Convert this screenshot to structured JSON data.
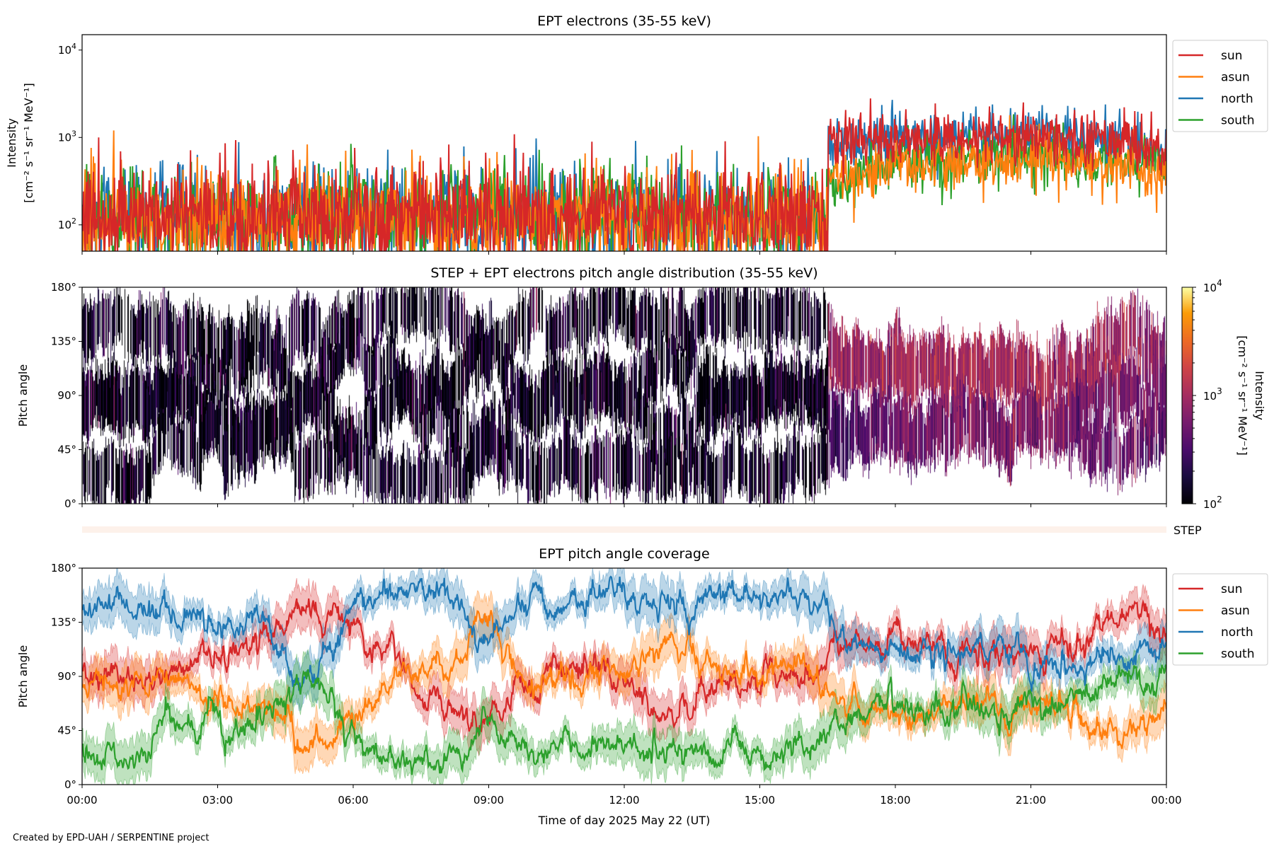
{
  "footer": "Created by EPD-UAH / SERPENTINE project",
  "xaxis": {
    "label": "Time of day 2025 May 22 (UT)",
    "ticks": [
      "00:00",
      "03:00",
      "06:00",
      "09:00",
      "12:00",
      "15:00",
      "18:00",
      "21:00",
      "00:00"
    ],
    "range_hours": [
      0,
      24
    ]
  },
  "step_label": "STEP",
  "chart_data": [
    {
      "type": "line",
      "title": "EPT electrons (35-55 keV)",
      "ylabel": [
        "Intensity",
        "[cm⁻² s⁻¹ sr⁻¹ MeV⁻¹]"
      ],
      "yscale": "log",
      "ylim": [
        50,
        15000
      ],
      "yticks": [
        {
          "value": 100,
          "base": "10",
          "exp": "2"
        },
        {
          "value": 1000,
          "base": "10",
          "exp": "3"
        },
        {
          "value": 10000,
          "base": "10",
          "exp": "4"
        }
      ],
      "legend": "right-outside-top",
      "x_hours": [
        0,
        1,
        2,
        3,
        4,
        5,
        6,
        7,
        8,
        9,
        10,
        11,
        12,
        13,
        14,
        15,
        16,
        17,
        18,
        19,
        20,
        21,
        22,
        23,
        24
      ],
      "series": [
        {
          "name": "sun",
          "color": "#d62728",
          "values": [
            130,
            130,
            130,
            130,
            130,
            130,
            130,
            130,
            130,
            130,
            130,
            130,
            130,
            130,
            130,
            130,
            130,
            900,
            1000,
            950,
            1000,
            950,
            950,
            900,
            700
          ]
        },
        {
          "name": "asun",
          "color": "#ff7f0e",
          "values": [
            110,
            110,
            110,
            110,
            110,
            110,
            110,
            110,
            110,
            110,
            110,
            110,
            110,
            110,
            110,
            110,
            110,
            350,
            450,
            500,
            550,
            600,
            500,
            450,
            400
          ]
        },
        {
          "name": "north",
          "color": "#1f77b4",
          "values": [
            120,
            120,
            120,
            120,
            120,
            120,
            120,
            120,
            120,
            120,
            120,
            120,
            120,
            120,
            120,
            120,
            120,
            850,
            950,
            1000,
            1000,
            1100,
            950,
            900,
            700
          ]
        },
        {
          "name": "south",
          "color": "#2ca02c",
          "values": [
            130,
            130,
            130,
            130,
            130,
            130,
            130,
            130,
            130,
            130,
            130,
            130,
            130,
            130,
            130,
            130,
            130,
            300,
            550,
            550,
            600,
            650,
            600,
            550,
            500
          ]
        }
      ]
    },
    {
      "type": "heatmap",
      "title": "STEP + EPT electrons pitch angle distribution (35-55 keV)",
      "ylabel": "Pitch angle",
      "ylim": [
        0,
        180
      ],
      "yticks": [
        "0°",
        "45°",
        "90°",
        "135°",
        "180°"
      ],
      "colormap": "inferno",
      "colorbar": {
        "label": [
          "Intensity",
          "[cm⁻² s⁻¹ sr⁻¹ MeV⁻¹]"
        ],
        "range": [
          100,
          10000
        ],
        "scale": "log",
        "ticks": [
          {
            "value": 100,
            "base": "10",
            "exp": "2"
          },
          {
            "value": 1000,
            "base": "10",
            "exp": "3"
          },
          {
            "value": 10000,
            "base": "10",
            "exp": "4"
          }
        ]
      }
    },
    {
      "type": "line",
      "title": "EPT pitch angle coverage",
      "ylabel": "Pitch angle",
      "ylim": [
        0,
        180
      ],
      "yticks": [
        "0°",
        "45°",
        "90°",
        "135°",
        "180°"
      ],
      "legend": "right-outside-top",
      "x_hours": [
        0,
        1,
        2,
        3,
        4,
        5,
        6,
        7,
        8,
        9,
        10,
        11,
        12,
        13,
        14,
        15,
        16,
        17,
        18,
        19,
        20,
        21,
        22,
        23,
        24
      ],
      "series": [
        {
          "name": "sun",
          "color": "#d62728",
          "values": [
            100,
            90,
            90,
            105,
            120,
            150,
            125,
            110,
            60,
            50,
            90,
            100,
            85,
            65,
            80,
            90,
            85,
            120,
            120,
            115,
            105,
            110,
            115,
            145,
            120
          ]
        },
        {
          "name": "asun",
          "color": "#ff7f0e",
          "values": [
            80,
            85,
            90,
            75,
            60,
            30,
            50,
            90,
            100,
            130,
            80,
            80,
            100,
            110,
            95,
            90,
            100,
            60,
            55,
            65,
            65,
            70,
            60,
            40,
            60
          ]
        },
        {
          "name": "north",
          "color": "#1f77b4",
          "values": [
            150,
            155,
            140,
            130,
            130,
            80,
            150,
            160,
            165,
            120,
            160,
            150,
            165,
            145,
            155,
            160,
            165,
            115,
            115,
            110,
            115,
            100,
            100,
            110,
            110
          ]
        },
        {
          "name": "south",
          "color": "#2ca02c",
          "values": [
            30,
            25,
            45,
            55,
            50,
            95,
            40,
            20,
            15,
            55,
            25,
            25,
            30,
            30,
            25,
            25,
            20,
            65,
            70,
            65,
            60,
            65,
            75,
            85,
            85
          ]
        }
      ]
    }
  ]
}
